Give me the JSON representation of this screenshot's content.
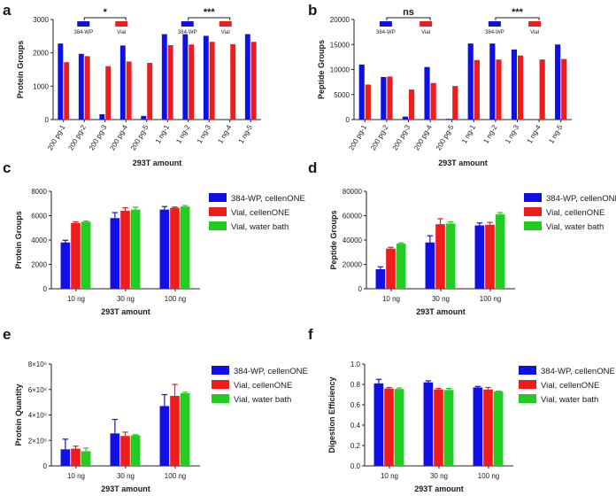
{
  "colors": {
    "blue": "#1010e6",
    "red": "#ee1c1c",
    "green": "#22cc22"
  },
  "chart_data": [
    {
      "panel": "a",
      "type": "bar",
      "grouped": false,
      "ylabel": "Protein Groups",
      "xlabel": "293T amount",
      "ylim": [
        0,
        3000
      ],
      "yticks": [
        "0",
        "1000",
        "2000",
        "3000"
      ],
      "categories": [
        "200 pg-1",
        "200 pg-2",
        "200 pg-3",
        "200 pg-4",
        "200 pg-5",
        "1 ng-1",
        "1 ng-2",
        "1 ng-3",
        "1 ng-4",
        "1 ng-5"
      ],
      "series": [
        {
          "name": "384-WP",
          "color": "blue",
          "values": [
            2280,
            1970,
            160,
            2220,
            110,
            2560,
            2560,
            2510,
            0,
            2560
          ]
        },
        {
          "name": "Vial",
          "color": "red",
          "values": [
            1720,
            1900,
            1600,
            1740,
            1700,
            2230,
            2250,
            2330,
            2260,
            2330
          ]
        }
      ],
      "significance": [
        {
          "label": "*",
          "from": 1,
          "to": 3
        },
        {
          "label": "***",
          "from": 6,
          "to": 8
        }
      ]
    },
    {
      "panel": "b",
      "type": "bar",
      "grouped": false,
      "ylabel": "Peptide Groups",
      "xlabel": "293T amount",
      "ylim": [
        0,
        20000
      ],
      "yticks": [
        "0",
        "5000",
        "10000",
        "15000",
        "20000"
      ],
      "categories": [
        "200 pg-1",
        "200 pg-2",
        "200 pg-3",
        "200 pg-4",
        "200 pg-5",
        "1 ng-1",
        "1 ng-2",
        "1 ng-3",
        "1 ng-4",
        "1 ng-5"
      ],
      "series": [
        {
          "name": "384-WP",
          "color": "blue",
          "values": [
            11000,
            8500,
            600,
            10500,
            150,
            15200,
            15200,
            14000,
            0,
            15000
          ]
        },
        {
          "name": "Vial",
          "color": "red",
          "values": [
            7000,
            8600,
            6000,
            7300,
            6700,
            11900,
            12000,
            12800,
            12000,
            12100
          ]
        }
      ],
      "significance": [
        {
          "label": "ns",
          "from": 1,
          "to": 3
        },
        {
          "label": "***",
          "from": 6,
          "to": 8
        }
      ]
    },
    {
      "panel": "c",
      "type": "bar",
      "grouped": true,
      "ylabel": "Protein Groups",
      "xlabel": "293T amount",
      "ylim": [
        0,
        8000
      ],
      "yticks": [
        "0",
        "2000",
        "4000",
        "6000",
        "8000"
      ],
      "categories": [
        "10 ng",
        "30 ng",
        "100 ng"
      ],
      "series": [
        {
          "name": "384-WP, cellenONE",
          "color": "blue",
          "values": [
            3800,
            5800,
            6500
          ],
          "errors": [
            180,
            450,
            250
          ]
        },
        {
          "name": "Vial, cellenONE",
          "color": "red",
          "values": [
            5400,
            6400,
            6650
          ],
          "errors": [
            100,
            250,
            60
          ]
        },
        {
          "name": "Vial, water bath",
          "color": "green",
          "values": [
            5500,
            6500,
            6750
          ],
          "errors": [
            60,
            200,
            80
          ]
        }
      ]
    },
    {
      "panel": "d",
      "type": "bar",
      "grouped": true,
      "ylabel": "Peptide Groups",
      "xlabel": "293T amount",
      "ylim": [
        0,
        80000
      ],
      "yticks": [
        "0",
        "20000",
        "40000",
        "60000",
        "80000"
      ],
      "categories": [
        "10 ng",
        "30 ng",
        "100 ng"
      ],
      "series": [
        {
          "name": "384-WP, cellenONE",
          "color": "blue",
          "values": [
            16000,
            38000,
            52000
          ],
          "errors": [
            2000,
            5500,
            2000
          ]
        },
        {
          "name": "Vial, cellenONE",
          "color": "red",
          "values": [
            33000,
            53000,
            52500
          ],
          "errors": [
            1000,
            4500,
            2000
          ]
        },
        {
          "name": "Vial, water bath",
          "color": "green",
          "values": [
            37000,
            53500,
            61000
          ],
          "errors": [
            700,
            1500,
            1500
          ]
        }
      ]
    },
    {
      "panel": "e",
      "type": "bar",
      "grouped": true,
      "ylabel": "Protein Quantity",
      "xlabel": "293T amount",
      "ylim": [
        0,
        8000000
      ],
      "yticks": [
        "0",
        "2×10⁶",
        "4×10⁶",
        "6×10⁶",
        "8×10⁶"
      ],
      "categories": [
        "10 ng",
        "30 ng",
        "100 ng"
      ],
      "series": [
        {
          "name": "384-WP, cellenONE",
          "color": "blue",
          "values": [
            1300000,
            2550000,
            4700000
          ],
          "errors": [
            800000,
            1100000,
            900000
          ]
        },
        {
          "name": "Vial, cellenONE",
          "color": "red",
          "values": [
            1350000,
            2350000,
            5500000
          ],
          "errors": [
            200000,
            300000,
            900000
          ]
        },
        {
          "name": "Vial, water bath",
          "color": "green",
          "values": [
            1150000,
            2400000,
            5700000
          ],
          "errors": [
            250000,
            50000,
            80000
          ]
        }
      ]
    },
    {
      "panel": "f",
      "type": "bar",
      "grouped": true,
      "ylabel": "Digestion Efficiency",
      "xlabel": "293T amount",
      "ylim": [
        0,
        1.0
      ],
      "yticks": [
        "0.0",
        "0.2",
        "0.4",
        "0.6",
        "0.8",
        "1.0"
      ],
      "categories": [
        "10 ng",
        "30 ng",
        "100 ng"
      ],
      "series": [
        {
          "name": "384-WP, cellenONE",
          "color": "blue",
          "values": [
            0.81,
            0.82,
            0.77
          ],
          "errors": [
            0.04,
            0.015,
            0.01
          ]
        },
        {
          "name": "Vial, cellenONE",
          "color": "red",
          "values": [
            0.76,
            0.75,
            0.75
          ],
          "errors": [
            0.01,
            0.01,
            0.02
          ]
        },
        {
          "name": "Vial, water bath",
          "color": "green",
          "values": [
            0.755,
            0.745,
            0.73
          ],
          "errors": [
            0.01,
            0.015,
            0.005
          ]
        }
      ]
    }
  ]
}
